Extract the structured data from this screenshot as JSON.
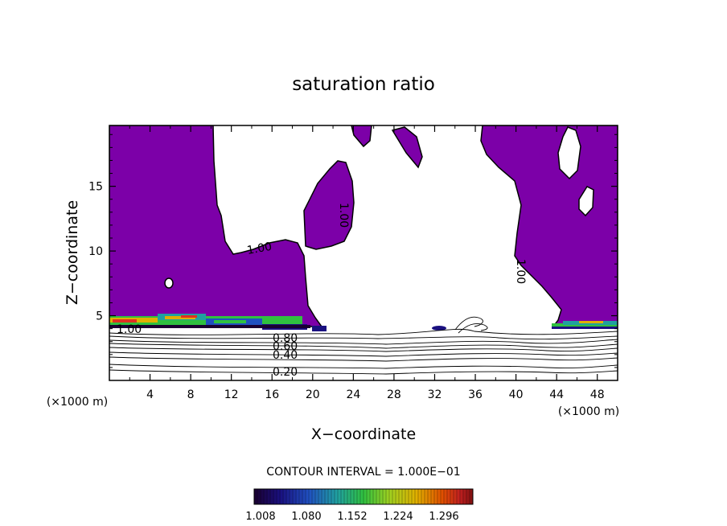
{
  "chart_data": {
    "type": "heatmap",
    "title": "saturation ratio",
    "xlabel": "X−coordinate",
    "ylabel": "Z−coordinate",
    "x_unit_label": "(×1000 m)",
    "y_unit_label": "(×1000 m)",
    "xlim": [
      0,
      50
    ],
    "ylim": [
      0,
      19.7
    ],
    "x_ticks": [
      4,
      8,
      12,
      16,
      20,
      24,
      28,
      32,
      36,
      40,
      44,
      48
    ],
    "y_ticks": [
      5,
      10,
      15
    ],
    "contour_labels": [
      {
        "value": "1.00",
        "x": 14.5,
        "z": 10.2,
        "angle": -10
      },
      {
        "value": "1.00",
        "x": 23.2,
        "z": 12.5,
        "angle": 90
      },
      {
        "value": "1.00",
        "x": 40.5,
        "z": 8.5,
        "angle": 90
      },
      {
        "value": "1.00",
        "x": 2.0,
        "z": 3.9,
        "angle": 0
      },
      {
        "value": "0.80",
        "x": 17.8,
        "z": 3.4,
        "angle": 0
      },
      {
        "value": "0.60",
        "x": 17.8,
        "z": 2.8,
        "angle": 0
      },
      {
        "value": "0.40",
        "x": 17.8,
        "z": 2.0,
        "angle": 0
      },
      {
        "value": "0.20",
        "x": 17.2,
        "z": 0.6,
        "angle": 0
      }
    ],
    "subsaturated_contour_levels": [
      0.2,
      0.3,
      0.4,
      0.5,
      0.6,
      0.7,
      0.8,
      0.9
    ],
    "supersaturated_fill_color": "#7c00a8",
    "contour_interval_text": "CONTOUR INTERVAL = 1.000E−01",
    "colorbar": {
      "ticks": [
        "1.008",
        "1.080",
        "1.152",
        "1.224",
        "1.296"
      ],
      "colors": [
        "#1a0030",
        "#1a1080",
        "#2050c0",
        "#20a0a0",
        "#30c040",
        "#a0d020",
        "#e0b000",
        "#e05000",
        "#c02020",
        "#801010"
      ]
    }
  }
}
